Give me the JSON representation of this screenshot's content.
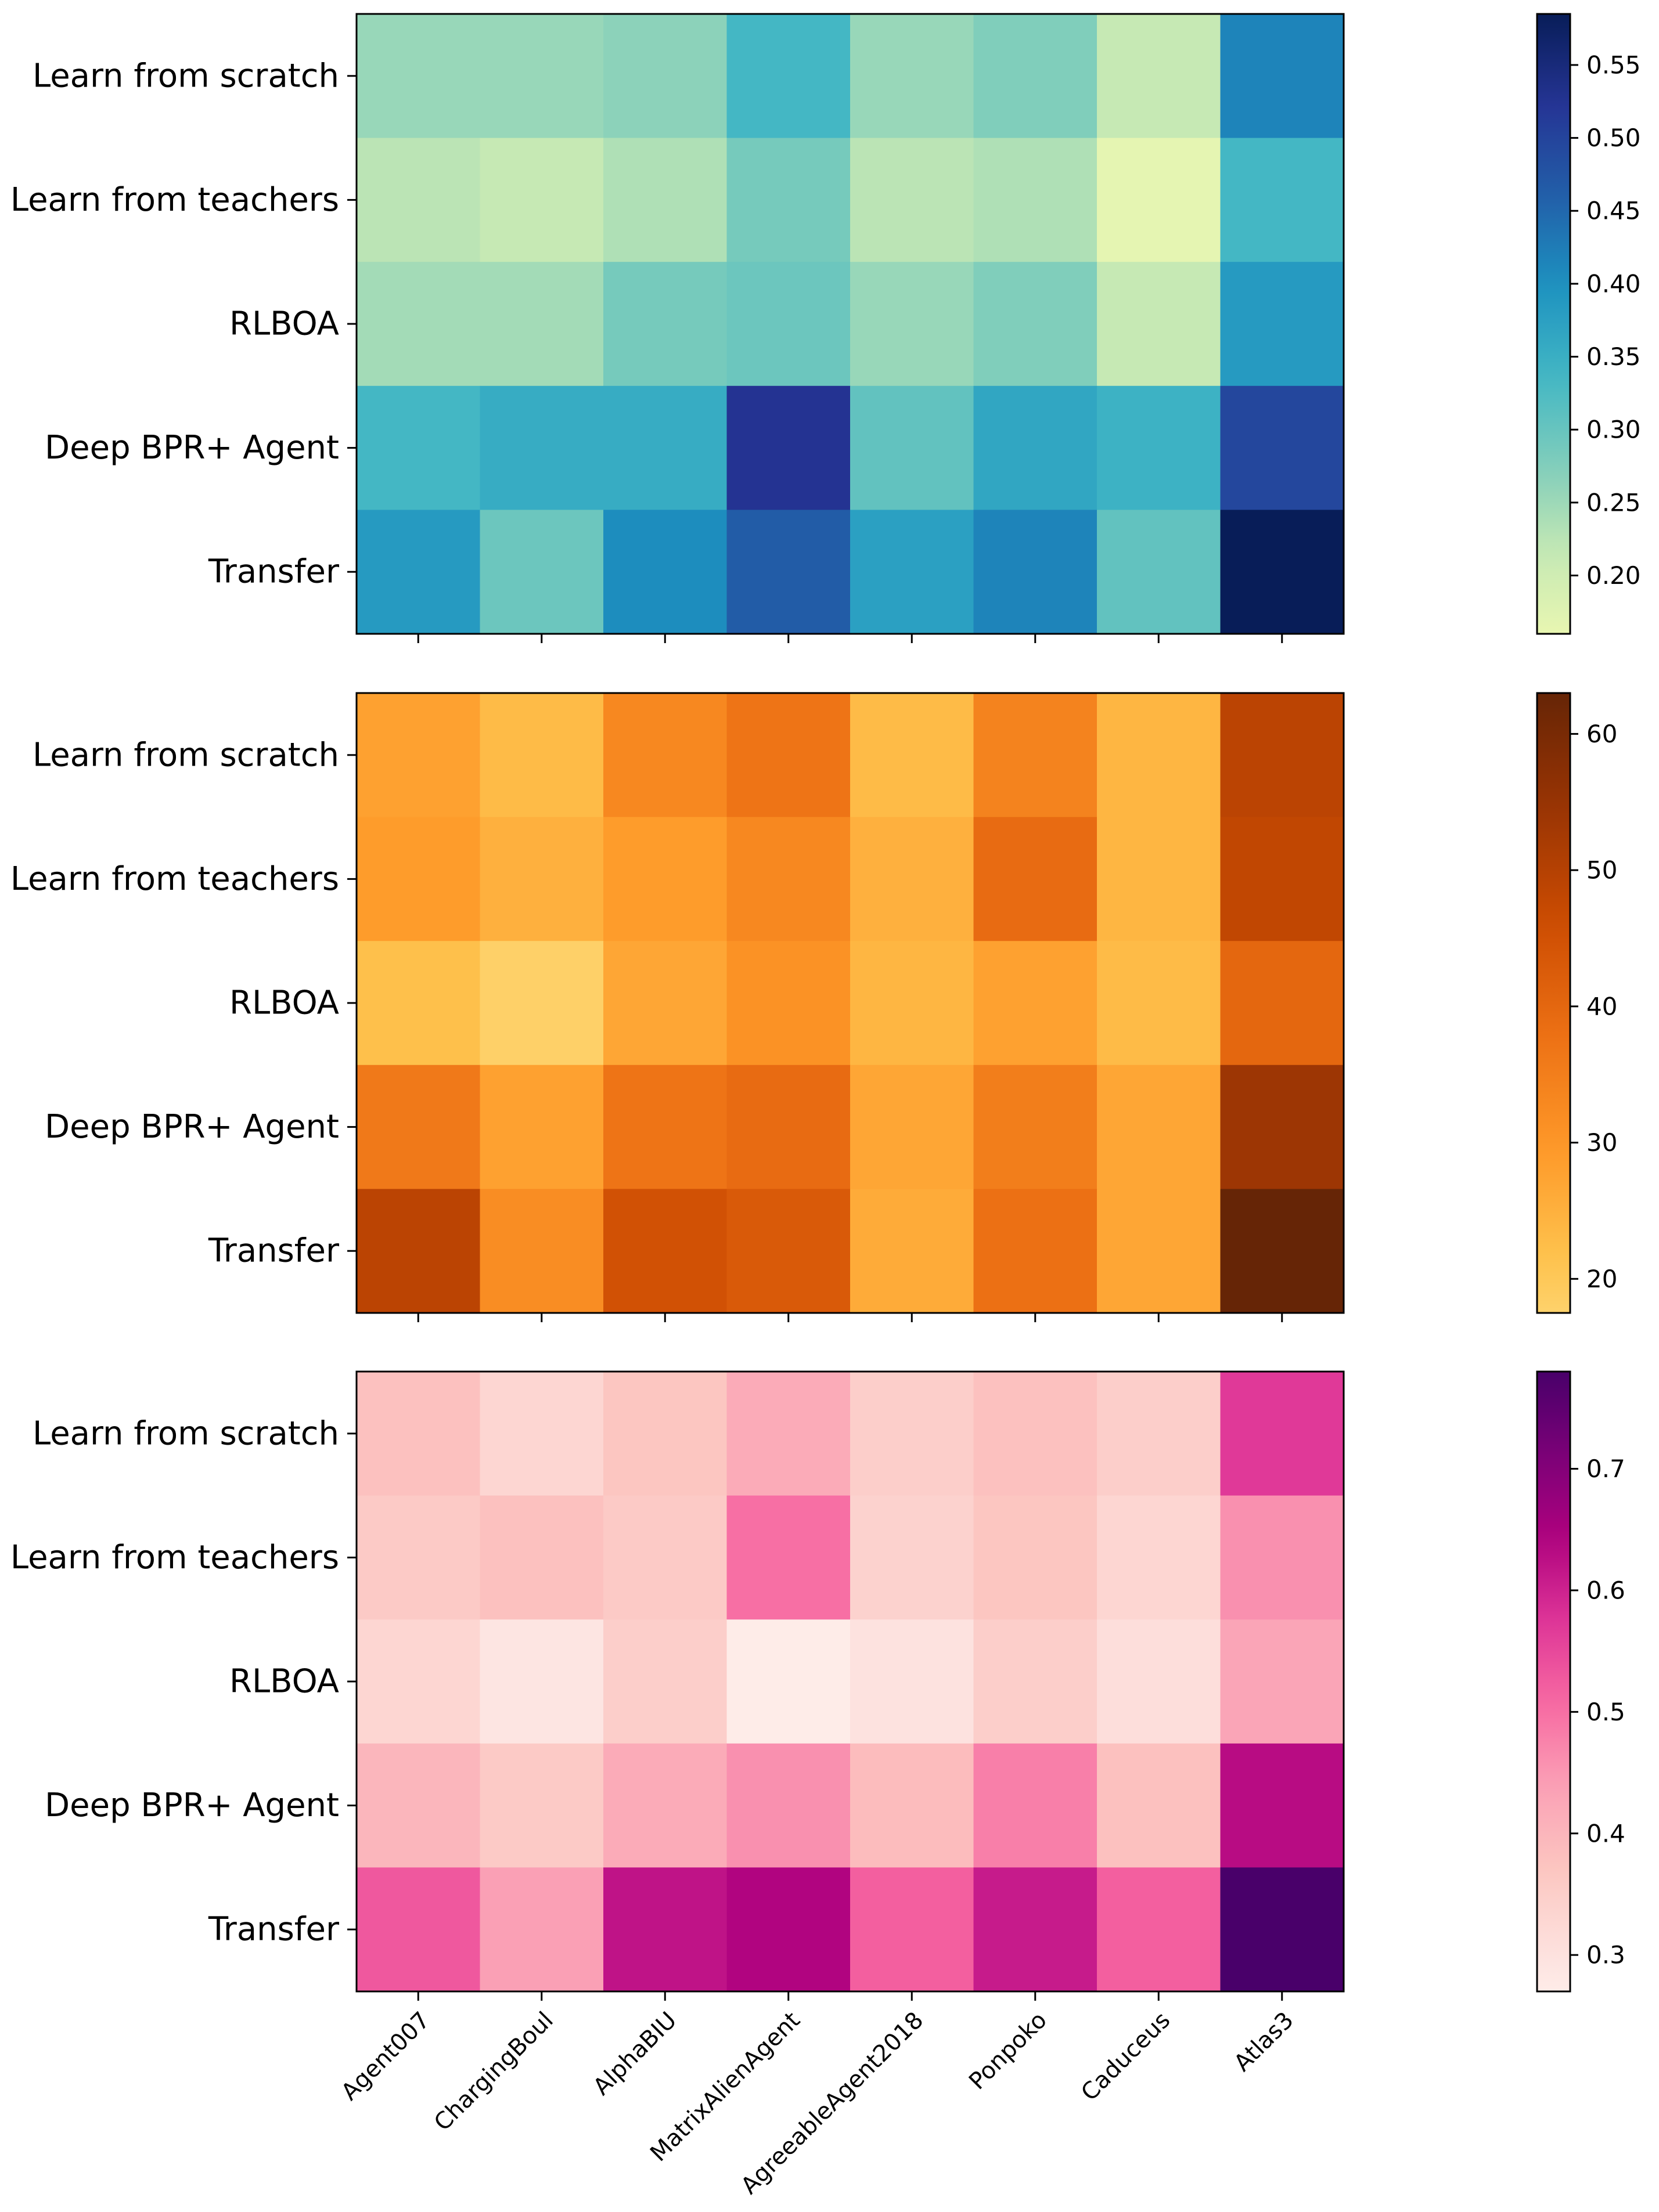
{
  "chart_data": [
    {
      "type": "heatmap",
      "colormap": "YlGnBu",
      "rows": [
        "Learn from scratch",
        "Learn from teachers",
        "RLBOA",
        "Deep BPR+ Agent",
        "Transfer"
      ],
      "columns": [
        "Agent007",
        "ChargingBoul",
        "AlphaBIU",
        "MatrixAlienAgent",
        "AgreeableAgent2018",
        "Ponpoko",
        "Caduceus",
        "Atlas3"
      ],
      "values": [
        [
          0.255,
          0.255,
          0.265,
          0.335,
          0.255,
          0.275,
          0.215,
          0.415
        ],
        [
          0.225,
          0.215,
          0.235,
          0.285,
          0.225,
          0.235,
          0.165,
          0.335
        ],
        [
          0.245,
          0.245,
          0.285,
          0.295,
          0.255,
          0.275,
          0.215,
          0.385
        ],
        [
          0.335,
          0.355,
          0.355,
          0.525,
          0.305,
          0.365,
          0.345,
          0.495
        ],
        [
          0.385,
          0.295,
          0.405,
          0.465,
          0.375,
          0.415,
          0.305,
          0.585
        ]
      ],
      "colorbar": {
        "vmin": 0.16,
        "vmax": 0.585,
        "ticks": [
          "0.20",
          "0.25",
          "0.30",
          "0.35",
          "0.40",
          "0.45",
          "0.50",
          "0.55"
        ]
      }
    },
    {
      "type": "heatmap",
      "colormap": "YlOrBr",
      "rows": [
        "Learn from scratch",
        "Learn from teachers",
        "RLBOA",
        "Deep BPR+ Agent",
        "Transfer"
      ],
      "columns": [
        "Agent007",
        "ChargingBoul",
        "AlphaBIU",
        "MatrixAlienAgent",
        "AgreeableAgent2018",
        "Ponpoko",
        "Caduceus",
        "Atlas3"
      ],
      "values": [
        [
          28,
          23,
          33,
          37,
          23,
          34,
          24,
          49
        ],
        [
          29,
          25,
          29,
          33,
          25,
          39,
          24,
          48
        ],
        [
          22,
          18,
          27,
          31,
          24,
          28,
          23,
          40
        ],
        [
          36,
          28,
          37,
          39,
          27,
          35,
          27,
          54
        ],
        [
          49,
          32,
          45,
          43,
          26,
          38,
          27,
          63
        ]
      ],
      "colorbar": {
        "vmin": 17.5,
        "vmax": 63,
        "ticks": [
          "20",
          "30",
          "40",
          "50",
          "60"
        ]
      }
    },
    {
      "type": "heatmap",
      "colormap": "RdPu",
      "rows": [
        "Learn from scratch",
        "Learn from teachers",
        "RLBOA",
        "Deep BPR+ Agent",
        "Transfer"
      ],
      "columns": [
        "Agent007",
        "ChargingBoul",
        "AlphaBIU",
        "MatrixAlienAgent",
        "AgreeableAgent2018",
        "Ponpoko",
        "Caduceus",
        "Atlas3"
      ],
      "values": [
        [
          0.38,
          0.33,
          0.37,
          0.42,
          0.35,
          0.38,
          0.35,
          0.57
        ],
        [
          0.36,
          0.38,
          0.36,
          0.5,
          0.34,
          0.37,
          0.33,
          0.46
        ],
        [
          0.33,
          0.29,
          0.35,
          0.27,
          0.3,
          0.35,
          0.31,
          0.43
        ],
        [
          0.4,
          0.36,
          0.42,
          0.46,
          0.39,
          0.48,
          0.38,
          0.63
        ],
        [
          0.53,
          0.44,
          0.62,
          0.64,
          0.52,
          0.61,
          0.52,
          0.78
        ]
      ],
      "colorbar": {
        "vmin": 0.27,
        "vmax": 0.78,
        "ticks": [
          "0.3",
          "0.4",
          "0.5",
          "0.6",
          "0.7"
        ]
      }
    }
  ]
}
